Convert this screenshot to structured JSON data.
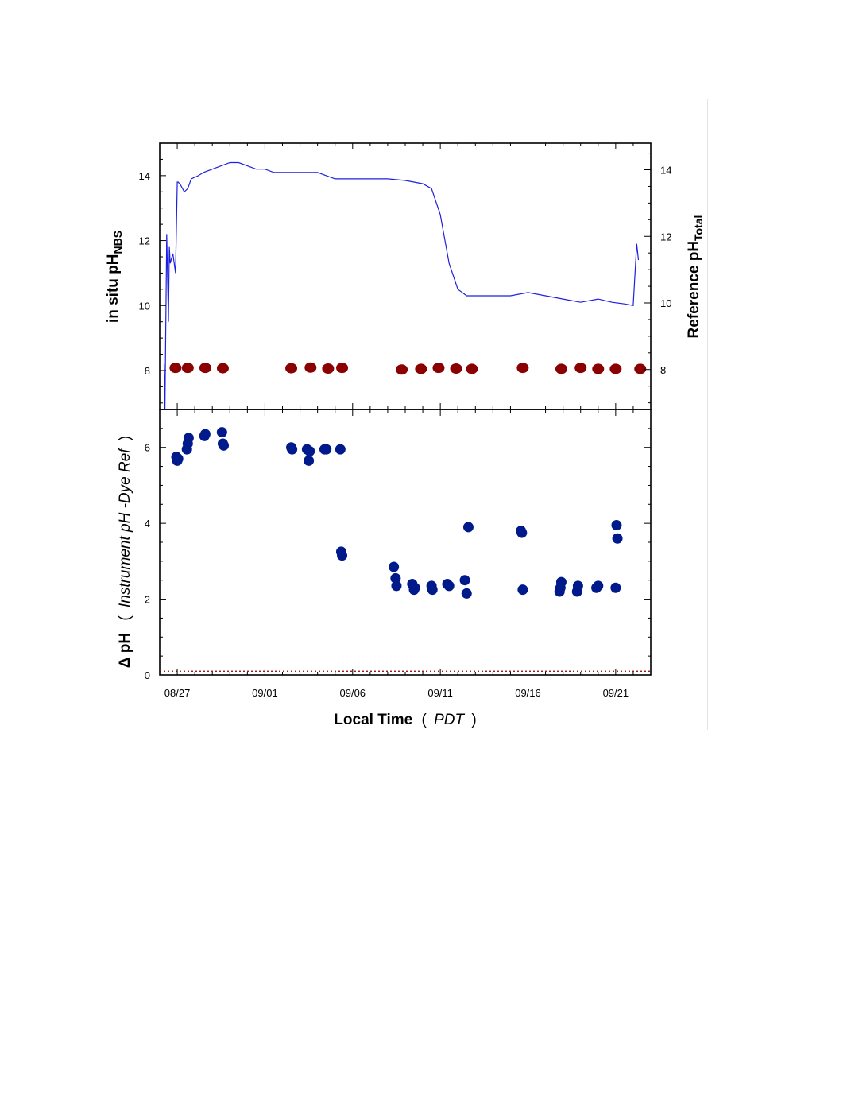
{
  "chart_data": [
    {
      "type": "line",
      "panel": "top",
      "ylabel_left": {
        "main": "in situ pH",
        "sub": "NBS"
      },
      "ylabel_right": {
        "main": "Reference pH",
        "sub": "Total"
      },
      "left_axis": {
        "ylim": [
          6.8,
          15.0
        ],
        "ticks": [
          8,
          10,
          12,
          14
        ]
      },
      "right_axis": {
        "ylim": [
          6.8,
          14.8
        ],
        "ticks": [
          8,
          10,
          12,
          14
        ]
      },
      "xlim": [
        "2019-08-26",
        "2019-09-23"
      ],
      "series": [
        {
          "axis": "left",
          "color": "#1f1fe0",
          "x": [
            0.25,
            0.3,
            0.4,
            0.5,
            0.55,
            0.6,
            0.75,
            0.9,
            1.0,
            1.05,
            1.2,
            1.4,
            1.6,
            1.8,
            2.2,
            2.5,
            3.0,
            3.5,
            4.0,
            4.5,
            5.0,
            5.5,
            6.0,
            6.5,
            7.0,
            7.5,
            8.0,
            8.5,
            9.0,
            9.5,
            10.0,
            11.0,
            12.0,
            13.0,
            14.0,
            14.5,
            15.0,
            15.5,
            16.0,
            16.5,
            17.0,
            17.5,
            18.0,
            18.5,
            19.0,
            20.0,
            21.0,
            22.0,
            23.0,
            24.0,
            25.0,
            25.8,
            26.5,
            27.0,
            27.2,
            27.3
          ],
          "y": [
            8.2,
            6.8,
            12.2,
            9.5,
            11.8,
            11.3,
            11.6,
            11.0,
            13.8,
            13.8,
            13.7,
            13.5,
            13.6,
            13.9,
            14.0,
            14.1,
            14.2,
            14.3,
            14.4,
            14.4,
            14.3,
            14.2,
            14.2,
            14.1,
            14.1,
            14.1,
            14.1,
            14.1,
            14.1,
            14.0,
            13.9,
            13.9,
            13.9,
            13.9,
            13.85,
            13.8,
            13.75,
            13.6,
            12.8,
            11.3,
            10.5,
            10.3,
            10.3,
            10.3,
            10.3,
            10.3,
            10.4,
            10.3,
            10.2,
            10.1,
            10.2,
            10.1,
            10.05,
            10.0,
            11.9,
            11.4
          ]
        },
        {
          "axis": "right",
          "color": "#8b0000",
          "x": [
            0.9,
            1.6,
            2.6,
            3.6,
            7.5,
            8.6,
            9.6,
            10.4,
            13.8,
            14.9,
            15.9,
            16.9,
            17.8,
            20.7,
            22.9,
            24.0,
            25.0,
            26.0,
            27.4
          ],
          "y": [
            8.05,
            8.05,
            8.05,
            8.04,
            8.04,
            8.06,
            8.03,
            8.05,
            8.0,
            8.02,
            8.05,
            8.03,
            8.02,
            8.05,
            8.02,
            8.05,
            8.02,
            8.02,
            8.02
          ]
        }
      ]
    },
    {
      "type": "scatter",
      "panel": "bottom",
      "ylabel": {
        "prefix": "Δ pH",
        "open": "(",
        "italic": "Instrument pH -Dye Ref",
        "close": ")"
      },
      "xlabel": {
        "main": "Local Time",
        "open": "(",
        "italic": "PDT",
        "close": ")"
      },
      "ylim": [
        0,
        7.0
      ],
      "yticks": [
        0,
        2,
        4,
        6
      ],
      "xlim": [
        "2019-08-26",
        "2019-09-23"
      ],
      "xtick_labels": [
        "08/27",
        "09/01",
        "09/06",
        "09/11",
        "09/16",
        "09/21"
      ],
      "color": "#001a8c",
      "reference_line": {
        "y": 0.1,
        "color": "#8b0000",
        "style": "dotted"
      },
      "points": {
        "x": [
          0.95,
          1.0,
          1.05,
          1.55,
          1.6,
          1.65,
          2.55,
          2.6,
          3.55,
          3.6,
          3.65,
          7.5,
          7.55,
          8.4,
          8.5,
          8.55,
          9.4,
          9.5,
          10.3,
          10.35,
          10.4,
          13.35,
          13.45,
          13.5,
          14.4,
          14.5,
          14.55,
          15.5,
          15.55,
          16.4,
          16.5,
          17.4,
          17.5,
          17.6,
          20.6,
          20.65,
          20.7,
          22.8,
          22.85,
          22.9,
          23.8,
          23.85,
          24.9,
          25.0,
          26.0,
          26.05,
          26.1
        ],
        "y": [
          5.75,
          5.65,
          5.7,
          5.95,
          6.1,
          6.25,
          6.3,
          6.35,
          6.4,
          6.1,
          6.05,
          6.0,
          5.95,
          5.95,
          5.65,
          5.9,
          5.95,
          5.95,
          5.95,
          3.25,
          3.15,
          2.85,
          2.55,
          2.35,
          2.4,
          2.25,
          2.3,
          2.35,
          2.25,
          2.4,
          2.35,
          2.5,
          2.15,
          3.9,
          3.8,
          3.75,
          2.25,
          2.2,
          2.3,
          2.45,
          2.2,
          2.35,
          2.3,
          2.35,
          2.3,
          3.95,
          3.6
        ]
      }
    }
  ]
}
